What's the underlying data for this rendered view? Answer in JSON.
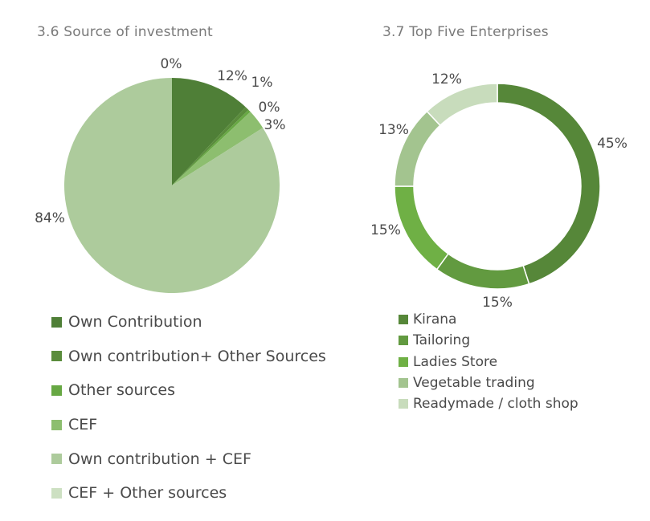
{
  "colors": {
    "own_contribution": "#4f7f37",
    "own_plus_other": "#5a8c3c",
    "other_sources": "#67a843",
    "cef": "#8dbe6f",
    "own_plus_cef": "#adcb9c",
    "cef_plus_other": "#cde0c2",
    "kirana": "#568739",
    "tailoring": "#629a40",
    "ladies_store": "#6fb045",
    "vegetable_trading": "#a3c48f",
    "readymade": "#c8dcbc"
  },
  "chart_data": [
    {
      "type": "pie",
      "title": "3.6 Source of investment",
      "categories": [
        "Own Contribution",
        "Own contribution+ Other Sources",
        "Other sources",
        "CEF",
        "Own contribution + CEF",
        "CEF + Other sources"
      ],
      "values": [
        12,
        0.6,
        0.4,
        3,
        84,
        0
      ],
      "data_labels": [
        "12%",
        "1%",
        "0%",
        "3%",
        "84%",
        "0%"
      ],
      "legend_position": "bottom"
    },
    {
      "type": "pie",
      "subtype": "donut",
      "title": "3.7 Top Five Enterprises",
      "categories": [
        "Kirana",
        "Tailoring",
        "Ladies Store",
        "Vegetable trading",
        "Readymade / cloth shop"
      ],
      "values": [
        45,
        15,
        15,
        13,
        12
      ],
      "data_labels": [
        "45%",
        "15%",
        "15%",
        "13%",
        "12%"
      ],
      "legend_position": "bottom"
    }
  ]
}
